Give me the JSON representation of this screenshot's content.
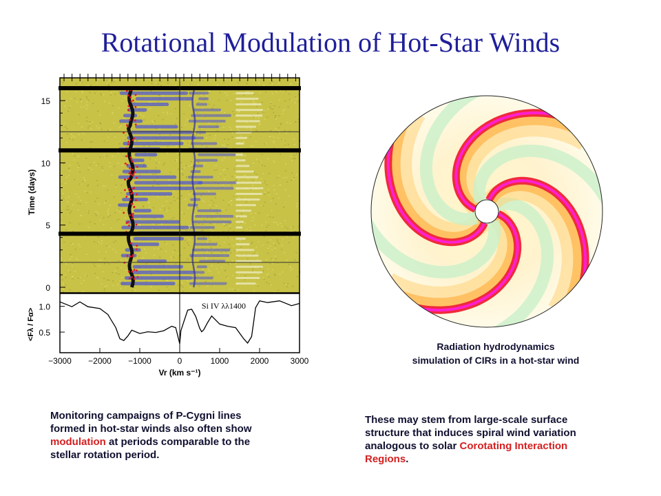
{
  "slide": {
    "title": "Rotational Modulation of Hot-Star Winds",
    "simulation_caption": {
      "line1": "Radiation hydrodynamics",
      "line2": "simulation of CIRs in a hot-star wind"
    },
    "left_text": {
      "before": "Monitoring campaigns of P-Cygni lines formed in hot-star winds also often show ",
      "highlight": "modulation",
      "after": " at periods comparable to the stellar rotation period."
    },
    "right_text": {
      "before": "These may stem from large-scale surface structure that  induces spiral wind variation analogous to solar ",
      "highlight": "Corotating Interaction Regions",
      "after": "."
    }
  },
  "colors": {
    "title": "#1f1f9a",
    "highlight": "#d42020",
    "spectrum_bg": "#c8c247",
    "absorption": "#4a52d8",
    "spiral_red": "#ef2b3a",
    "spiral_magenta": "#ff1fd0",
    "wind_green": "#c9f0c9"
  },
  "chart_data": [
    {
      "type": "heatmap",
      "title": "",
      "ylabel": "Time (days)",
      "ylim": [
        0,
        16
      ],
      "xlim": [
        -3000,
        3000
      ],
      "y_ticks": [
        "0",
        "5",
        "10",
        "15"
      ],
      "time_series_breaks": [
        4.3,
        11.0,
        16.0
      ],
      "description_features": [
        "discrete absorption components",
        "red/black saturated core near -1200 km/s"
      ]
    },
    {
      "type": "line",
      "label": "Si IV λλ1400",
      "xlabel": "Vr (km s⁻¹)",
      "ylabel": "<Fλ / Fα>",
      "xlim": [
        -3000,
        3000
      ],
      "ylim": [
        0.1,
        1.25
      ],
      "x_ticks": [
        "-3000",
        "-2000",
        "-1000",
        "0",
        "1000",
        "2000",
        "3000"
      ],
      "y_ticks": [
        "0.5",
        "1.0"
      ],
      "series": [
        {
          "x": [
            -3000,
            -2700,
            -2500,
            -2300,
            -2000,
            -1800,
            -1600,
            -1500,
            -1400,
            -1300,
            -1200,
            -1000,
            -800,
            -600,
            -400,
            -200,
            -100,
            0,
            30,
            100,
            200,
            300,
            400,
            500,
            550,
            600,
            700,
            800,
            1000,
            1200,
            1400,
            1600,
            1700,
            1800,
            1850,
            1900,
            2000,
            2200,
            2500,
            2800,
            3000
          ],
          "y": [
            1.08,
            1.0,
            1.08,
            1.0,
            0.95,
            0.85,
            0.58,
            0.38,
            0.33,
            0.43,
            0.53,
            0.48,
            0.5,
            0.5,
            0.52,
            0.62,
            0.58,
            0.28,
            0.52,
            0.7,
            0.92,
            0.95,
            0.8,
            0.58,
            0.5,
            0.55,
            0.68,
            0.82,
            0.65,
            0.62,
            0.58,
            0.38,
            0.28,
            0.42,
            0.68,
            0.98,
            1.1,
            1.08,
            1.1,
            1.02,
            1.05
          ]
        }
      ]
    }
  ]
}
